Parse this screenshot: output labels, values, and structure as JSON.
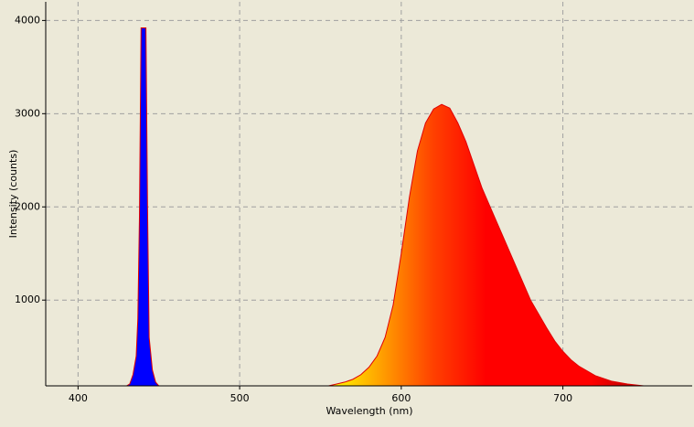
{
  "chart_data": {
    "type": "area",
    "xlabel": "Wavelength (nm)",
    "ylabel": "Intensity (counts)",
    "xlim": [
      380,
      780
    ],
    "ylim": [
      80,
      4200
    ],
    "xticks": [
      400,
      500,
      600,
      700
    ],
    "yticks": [
      1000,
      2000,
      3000,
      4000
    ],
    "grid": true,
    "edge_color": "#e00000",
    "series": [
      {
        "x": [
          430,
          432,
          434,
          436,
          437,
          438,
          439,
          440,
          441,
          442,
          443,
          444,
          446,
          448,
          450
        ],
        "values": [
          80,
          100,
          200,
          400,
          800,
          1900,
          3920,
          3920,
          3920,
          3920,
          2000,
          600,
          250,
          120,
          80
        ],
        "colors": [
          "#0000ff"
        ]
      },
      {
        "x": [
          555,
          560,
          565,
          570,
          575,
          580,
          585,
          590,
          595,
          600,
          605,
          610,
          615,
          620,
          625,
          630,
          635,
          640,
          645,
          650,
          655,
          660,
          665,
          670,
          675,
          680,
          685,
          690,
          695,
          700,
          705,
          710,
          720,
          730,
          740,
          750
        ],
        "values": [
          80,
          100,
          120,
          150,
          200,
          280,
          400,
          600,
          950,
          1500,
          2100,
          2600,
          2900,
          3050,
          3100,
          3060,
          2900,
          2700,
          2450,
          2200,
          2000,
          1800,
          1600,
          1400,
          1200,
          1000,
          850,
          700,
          560,
          450,
          360,
          290,
          190,
          130,
          100,
          80
        ],
        "colors": [
          "#ffff00",
          "#ffa000",
          "#ff4000",
          "#ff0000",
          "#ff0000",
          "#ff0000",
          "#b00000"
        ]
      }
    ]
  }
}
